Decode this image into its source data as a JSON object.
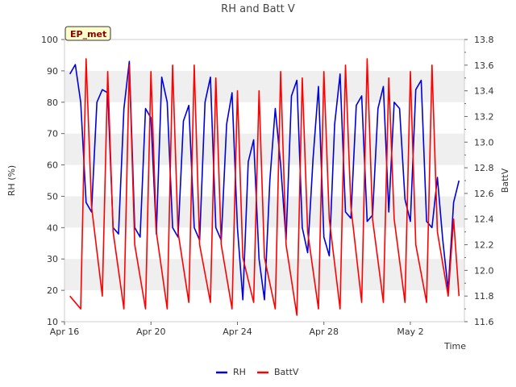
{
  "chart_data": {
    "type": "line",
    "title": "RH and Batt V",
    "xlabel": "Time",
    "ylabel": "RH (%)",
    "y2label": "BattV",
    "badge": "EP_met",
    "x_start": "2025-04-16",
    "x_end": "2025-05-04 12:00",
    "x_ticks": [
      "Apr 16",
      "Apr 20",
      "Apr 24",
      "Apr 28",
      "May 2"
    ],
    "ylim": [
      10,
      100
    ],
    "y_ticks": [
      "10",
      "20",
      "30",
      "40",
      "50",
      "60",
      "70",
      "80",
      "90",
      "100"
    ],
    "y2lim": [
      11.6,
      13.8
    ],
    "y2_ticks": [
      "11.6",
      "11.8",
      "12.0",
      "12.2",
      "12.4",
      "12.6",
      "12.8",
      "13.0",
      "13.2",
      "13.4",
      "13.6",
      "13.8"
    ],
    "grid": "horizontal bands",
    "legend_position": "bottom",
    "series": [
      {
        "name": "RH",
        "axis": "left",
        "color": "#0000dd",
        "x": [
          "2025-04-16 06:00",
          "2025-04-16 12:00",
          "2025-04-16 18:00",
          "2025-04-17 00:00",
          "2025-04-17 06:00",
          "2025-04-17 12:00",
          "2025-04-17 18:00",
          "2025-04-18 00:00",
          "2025-04-18 06:00",
          "2025-04-18 12:00",
          "2025-04-18 18:00",
          "2025-04-19 00:00",
          "2025-04-19 06:00",
          "2025-04-19 12:00",
          "2025-04-19 18:00",
          "2025-04-20 00:00",
          "2025-04-20 06:00",
          "2025-04-20 12:00",
          "2025-04-20 18:00",
          "2025-04-21 00:00",
          "2025-04-21 06:00",
          "2025-04-21 12:00",
          "2025-04-21 18:00",
          "2025-04-22 00:00",
          "2025-04-22 06:00",
          "2025-04-22 12:00",
          "2025-04-22 18:00",
          "2025-04-23 00:00",
          "2025-04-23 06:00",
          "2025-04-23 12:00",
          "2025-04-23 18:00",
          "2025-04-24 00:00",
          "2025-04-24 06:00",
          "2025-04-24 12:00",
          "2025-04-24 18:00",
          "2025-04-25 00:00",
          "2025-04-25 06:00",
          "2025-04-25 12:00",
          "2025-04-25 18:00",
          "2025-04-26 00:00",
          "2025-04-26 06:00",
          "2025-04-26 12:00",
          "2025-04-26 18:00",
          "2025-04-27 00:00",
          "2025-04-27 06:00",
          "2025-04-27 12:00",
          "2025-04-27 18:00",
          "2025-04-28 00:00",
          "2025-04-28 06:00",
          "2025-04-28 12:00",
          "2025-04-28 18:00",
          "2025-04-29 00:00",
          "2025-04-29 06:00",
          "2025-04-29 12:00",
          "2025-04-29 18:00",
          "2025-04-30 00:00",
          "2025-04-30 06:00",
          "2025-04-30 12:00",
          "2025-04-30 18:00",
          "2025-05-01 00:00",
          "2025-05-01 06:00",
          "2025-05-01 12:00",
          "2025-05-01 18:00",
          "2025-05-02 00:00",
          "2025-05-02 06:00",
          "2025-05-02 12:00",
          "2025-05-02 18:00",
          "2025-05-03 00:00",
          "2025-05-03 06:00",
          "2025-05-03 12:00",
          "2025-05-03 18:00",
          "2025-05-04 00:00",
          "2025-05-04 06:00"
        ],
        "values": [
          89,
          92,
          80,
          48,
          45,
          80,
          84,
          83,
          40,
          38,
          78,
          93,
          40,
          37,
          78,
          75,
          38,
          88,
          80,
          40,
          37,
          74,
          79,
          40,
          36,
          80,
          88,
          40,
          36,
          73,
          83,
          40,
          17,
          61,
          68,
          30,
          17,
          55,
          78,
          60,
          36,
          82,
          87,
          40,
          32,
          62,
          85,
          37,
          31,
          73,
          89,
          45,
          43,
          79,
          82,
          42,
          44,
          78,
          85,
          45,
          80,
          78,
          49,
          42,
          84,
          87,
          42,
          40,
          56,
          36,
          20,
          48,
          55
        ],
        "values_precision_note": ""
      },
      {
        "name": "BattV",
        "axis": "right",
        "color": "#ff0000",
        "x": [
          "2025-04-16 06:00",
          "2025-04-16 18:00",
          "2025-04-17 00:00",
          "2025-04-17 06:00",
          "2025-04-17 18:00",
          "2025-04-18 00:00",
          "2025-04-18 06:00",
          "2025-04-18 18:00",
          "2025-04-19 00:00",
          "2025-04-19 06:00",
          "2025-04-19 18:00",
          "2025-04-20 00:00",
          "2025-04-20 06:00",
          "2025-04-20 18:00",
          "2025-04-21 00:00",
          "2025-04-21 06:00",
          "2025-04-21 18:00",
          "2025-04-22 00:00",
          "2025-04-22 06:00",
          "2025-04-22 18:00",
          "2025-04-23 00:00",
          "2025-04-23 06:00",
          "2025-04-23 18:00",
          "2025-04-24 00:00",
          "2025-04-24 06:00",
          "2025-04-24 18:00",
          "2025-04-25 00:00",
          "2025-04-25 06:00",
          "2025-04-25 18:00",
          "2025-04-26 00:00",
          "2025-04-26 06:00",
          "2025-04-26 18:00",
          "2025-04-27 00:00",
          "2025-04-27 06:00",
          "2025-04-27 18:00",
          "2025-04-28 00:00",
          "2025-04-28 06:00",
          "2025-04-28 18:00",
          "2025-04-29 00:00",
          "2025-04-29 06:00",
          "2025-04-29 18:00",
          "2025-04-30 00:00",
          "2025-04-30 06:00",
          "2025-04-30 18:00",
          "2025-05-01 00:00",
          "2025-05-01 06:00",
          "2025-05-01 18:00",
          "2025-05-02 00:00",
          "2025-05-02 06:00",
          "2025-05-02 18:00",
          "2025-05-03 00:00",
          "2025-05-03 06:00",
          "2025-05-03 18:00",
          "2025-05-04 00:00",
          "2025-05-04 06:00"
        ],
        "values": [
          11.8,
          11.7,
          13.65,
          12.5,
          11.8,
          13.55,
          12.3,
          11.7,
          13.6,
          12.2,
          11.7,
          13.55,
          12.3,
          11.7,
          13.6,
          12.3,
          11.75,
          13.6,
          12.2,
          11.75,
          13.5,
          12.2,
          11.7,
          13.4,
          12.1,
          11.75,
          13.4,
          12.1,
          11.7,
          13.55,
          12.2,
          11.65,
          13.5,
          12.3,
          11.7,
          13.55,
          12.4,
          11.7,
          13.6,
          12.5,
          11.75,
          13.65,
          12.4,
          11.75,
          13.5,
          12.4,
          11.75,
          13.55,
          12.2,
          11.75,
          13.6,
          12.3,
          11.8,
          12.4,
          11.8
        ]
      }
    ]
  }
}
